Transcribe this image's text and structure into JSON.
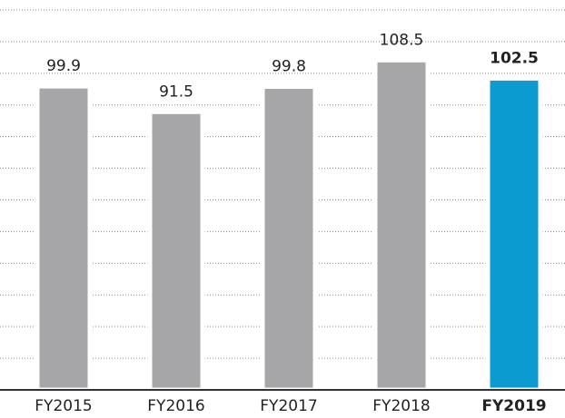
{
  "chart_data": {
    "type": "bar",
    "categories": [
      "FY2015",
      "FY2016",
      "FY2017",
      "FY2018",
      "FY2019"
    ],
    "values": [
      99.9,
      91.5,
      99.8,
      108.5,
      102.5
    ],
    "colors": [
      "#a6a6a8",
      "#a6a6a8",
      "#a6a6a8",
      "#a6a6a8",
      "#0b9bd0"
    ],
    "emphasis": [
      false,
      false,
      false,
      false,
      true
    ],
    "ylim": [
      0,
      125
    ],
    "grid": true
  }
}
